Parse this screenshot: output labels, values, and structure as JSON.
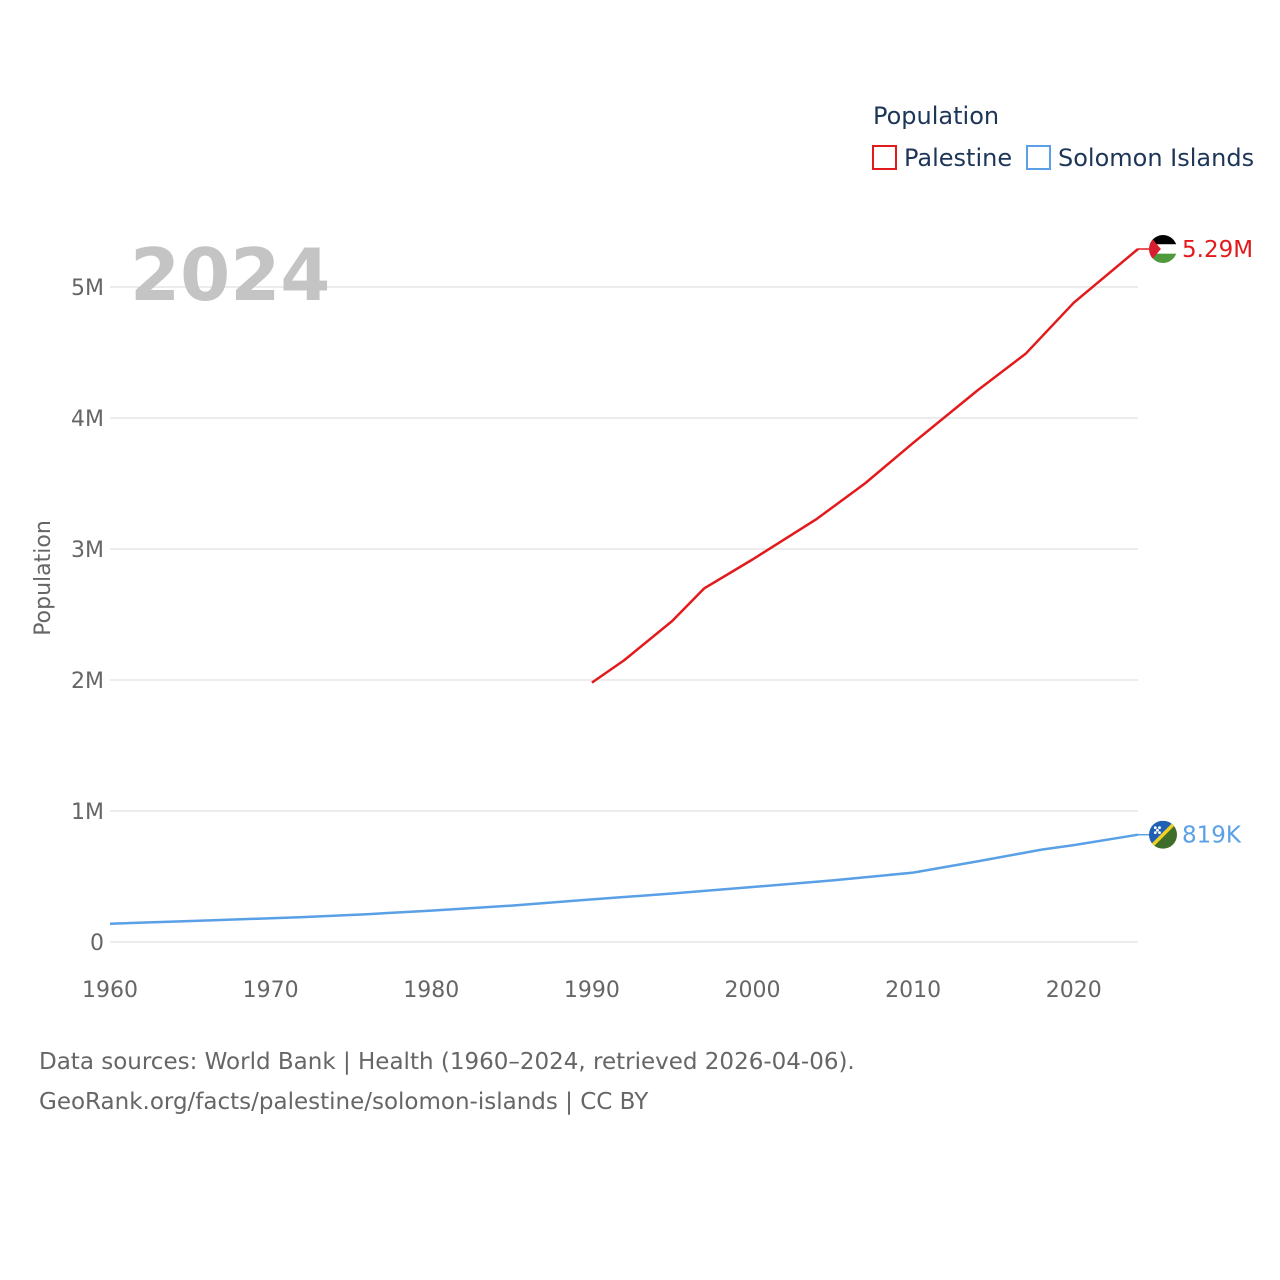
{
  "chart_data": {
    "type": "line",
    "title": "Population",
    "ylabel": "Population",
    "xlabel": "",
    "xlim": [
      1960,
      2024
    ],
    "ylim": [
      0,
      5000000
    ],
    "x_ticks": [
      1960,
      1970,
      1980,
      1990,
      2000,
      2010,
      2020
    ],
    "y_ticks": [
      0,
      1000000,
      2000000,
      3000000,
      4000000,
      5000000
    ],
    "y_tick_labels": [
      "0",
      "1M",
      "2M",
      "3M",
      "4M",
      "5M"
    ],
    "x_tick_labels": [
      "1960",
      "1970",
      "1980",
      "1990",
      "2000",
      "2010",
      "2020"
    ],
    "current_year": "2024",
    "legend_position": "top-right",
    "series": [
      {
        "name": "Palestine",
        "color": "#e31a1c",
        "end_label": "5.29M",
        "flag_icon": "palestine-flag-icon",
        "points": [
          [
            1990,
            1980000
          ],
          [
            1992,
            2150000
          ],
          [
            1995,
            2450000
          ],
          [
            1997,
            2700000
          ],
          [
            2000,
            2920000
          ],
          [
            2004,
            3230000
          ],
          [
            2007,
            3500000
          ],
          [
            2010,
            3810000
          ],
          [
            2014,
            4210000
          ],
          [
            2017,
            4490000
          ],
          [
            2020,
            4880000
          ],
          [
            2024,
            5290000
          ]
        ]
      },
      {
        "name": "Solomon Islands",
        "color": "#5aa0e6",
        "end_label": "819K",
        "flag_icon": "solomon-islands-flag-icon",
        "points": [
          [
            1960,
            140000
          ],
          [
            1966,
            164000
          ],
          [
            1972,
            190000
          ],
          [
            1976,
            212000
          ],
          [
            1980,
            240000
          ],
          [
            1985,
            278000
          ],
          [
            1990,
            325000
          ],
          [
            1995,
            370000
          ],
          [
            2000,
            420000
          ],
          [
            2005,
            470000
          ],
          [
            2010,
            530000
          ],
          [
            2014,
            615000
          ],
          [
            2018,
            705000
          ],
          [
            2020,
            740000
          ],
          [
            2024,
            819000
          ]
        ]
      }
    ]
  },
  "source": {
    "line1": "Data sources: World Bank | Health (1960–2024, retrieved 2026-04-06).",
    "line2": "GeoRank.org/facts/palestine/solomon-islands | CC BY"
  }
}
